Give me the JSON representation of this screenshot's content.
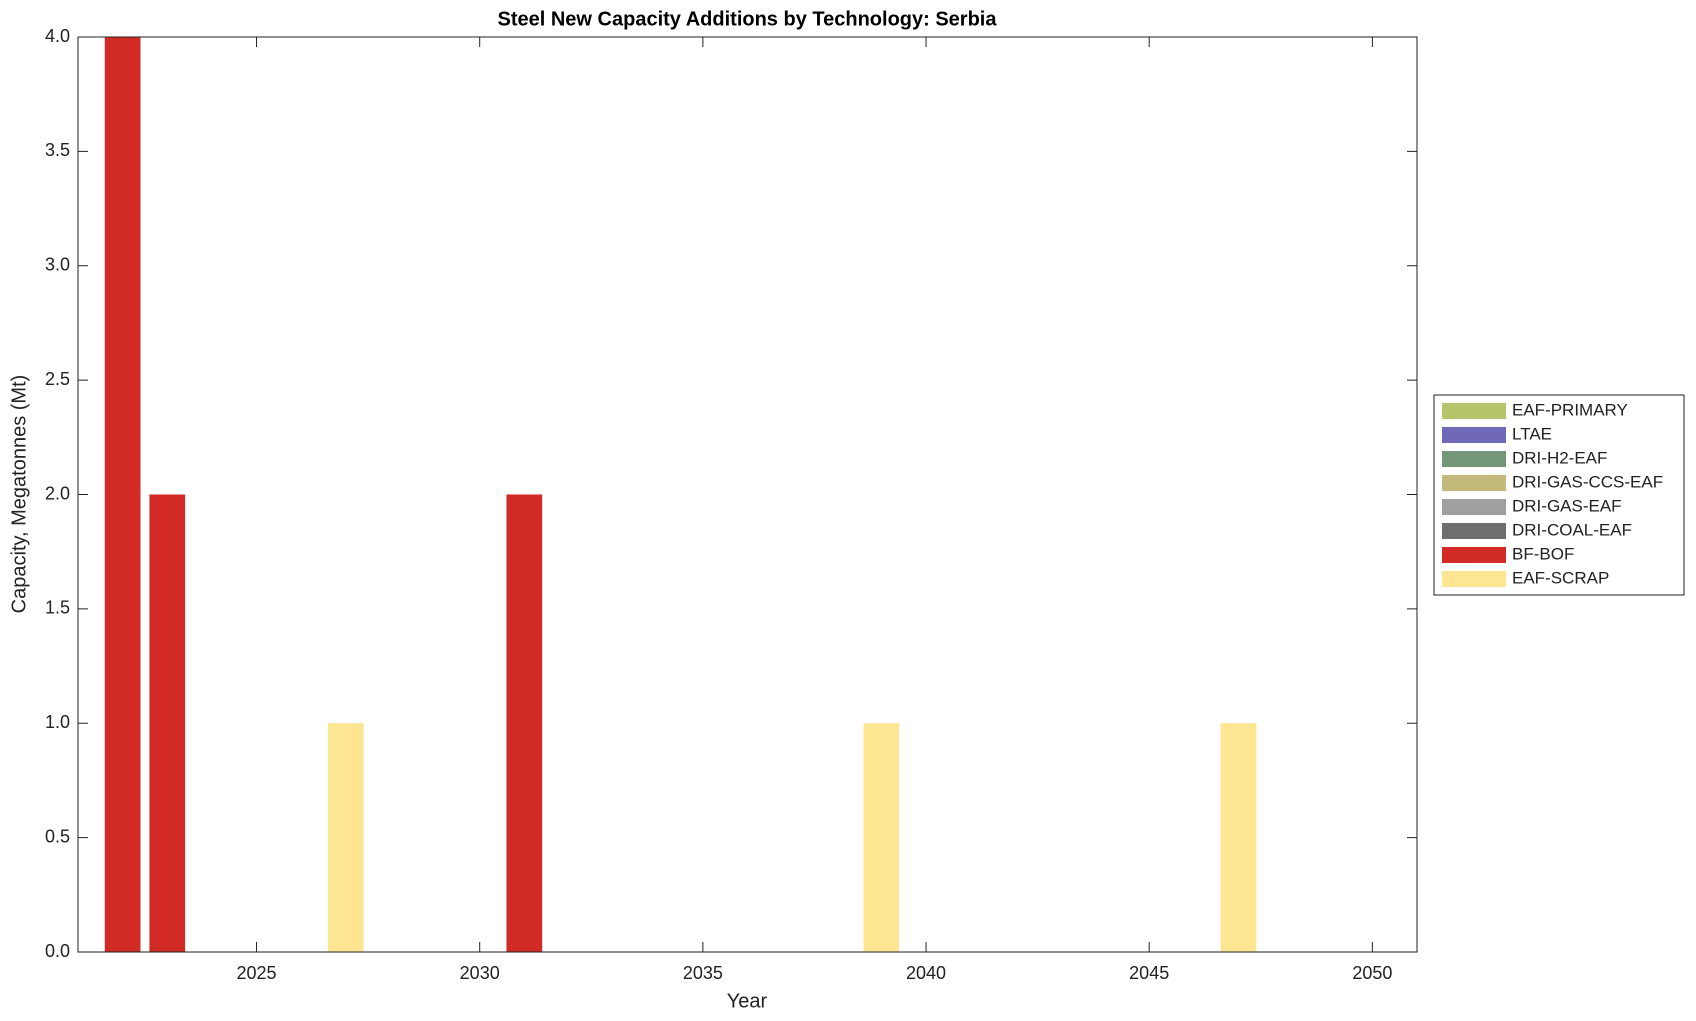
{
  "chart_data": {
    "type": "stacked_bar",
    "title": "Steel New Capacity Additions by Technology: Serbia",
    "xlabel": "Year",
    "ylabel": "Capacity, Megatonnes (Mt)",
    "x": [
      2022,
      2023,
      2027,
      2031,
      2039,
      2047
    ],
    "series": [
      {
        "name": "EAF-PRIMARY",
        "color": "#b8c46a",
        "values": [
          0,
          0,
          0,
          0,
          0,
          0
        ]
      },
      {
        "name": "LTAE",
        "color": "#7068b8",
        "values": [
          0,
          0,
          0,
          0,
          0,
          0
        ]
      },
      {
        "name": "DRI-H2-EAF",
        "color": "#74977a",
        "values": [
          0,
          0,
          0,
          0,
          0,
          0
        ]
      },
      {
        "name": "DRI-GAS-CCS-EAF",
        "color": "#c2b97a",
        "values": [
          0,
          0,
          0,
          0,
          0,
          0
        ]
      },
      {
        "name": "DRI-GAS-EAF",
        "color": "#a0a0a0",
        "values": [
          0,
          0,
          0,
          0,
          0,
          0
        ]
      },
      {
        "name": "DRI-COAL-EAF",
        "color": "#6e6e6e",
        "values": [
          0,
          0,
          0,
          0,
          0,
          0
        ]
      },
      {
        "name": "BF-BOF",
        "color": "#d22a24",
        "values": [
          4,
          2,
          0,
          2,
          0,
          0
        ]
      },
      {
        "name": "EAF-SCRAP",
        "color": "#fde592",
        "values": [
          0,
          0,
          1,
          0,
          1,
          1
        ]
      }
    ],
    "xlim": [
      2021,
      2051
    ],
    "xticks": [
      2025,
      2030,
      2035,
      2040,
      2045,
      2050
    ],
    "ylim": [
      0,
      4
    ],
    "yticks": [
      {
        "value": 0,
        "label": "0.0"
      },
      0.5,
      {
        "value": 1,
        "label": "1.0"
      },
      1.5,
      {
        "value": 2,
        "label": "2.0"
      },
      2.5,
      {
        "value": 3,
        "label": "3.0"
      },
      3.5,
      {
        "value": 4,
        "label": "4.0"
      }
    ],
    "legend": "outside-right",
    "grid": false
  }
}
